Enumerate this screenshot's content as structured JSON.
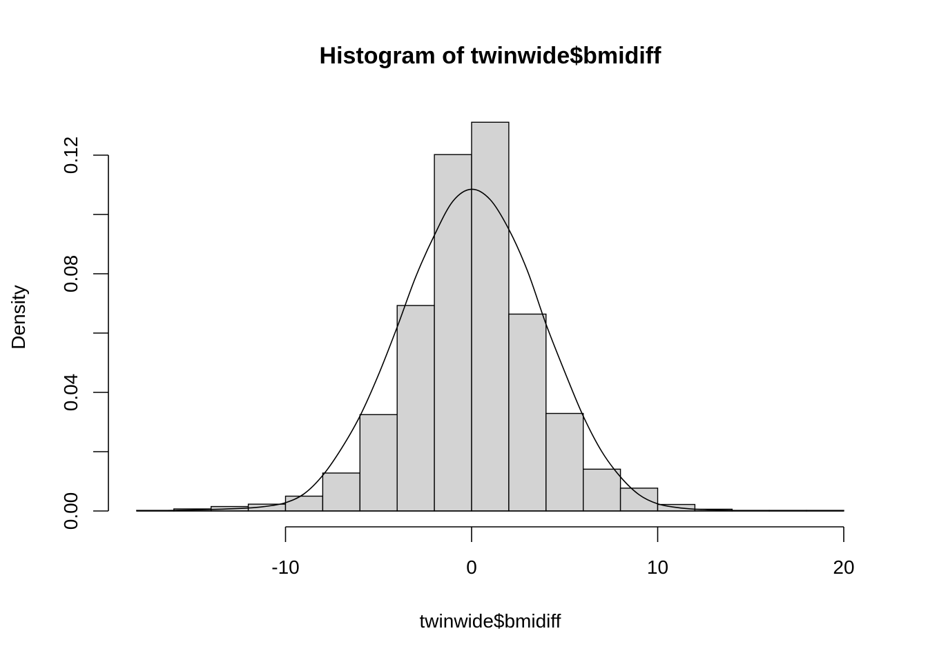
{
  "chart_data": {
    "type": "bar",
    "subtype": "histogram",
    "title": "Histogram of twinwide$bmidiff",
    "xlabel": "twinwide$bmidiff",
    "ylabel": "Density",
    "xlim": [
      -20,
      20
    ],
    "ylim": [
      0,
      0.12
    ],
    "x_ticks": [
      -10,
      0,
      10,
      20
    ],
    "x_tick_labels": [
      "-10",
      "0",
      "10",
      "20"
    ],
    "y_ticks": [
      0.0,
      0.02,
      0.04,
      0.06,
      0.08,
      0.1,
      0.12
    ],
    "y_tick_labels": [
      "0.00",
      "",
      "0.04",
      "",
      "0.08",
      "",
      "0.12"
    ],
    "bins": [
      {
        "x0": -18,
        "x1": -16,
        "density": 0.0002
      },
      {
        "x0": -16,
        "x1": -14,
        "density": 0.0007
      },
      {
        "x0": -14,
        "x1": -12,
        "density": 0.0015
      },
      {
        "x0": -12,
        "x1": -10,
        "density": 0.0023
      },
      {
        "x0": -10,
        "x1": -8,
        "density": 0.005
      },
      {
        "x0": -8,
        "x1": -6,
        "density": 0.0128
      },
      {
        "x0": -6,
        "x1": -4,
        "density": 0.0325
      },
      {
        "x0": -4,
        "x1": -2,
        "density": 0.0693
      },
      {
        "x0": -2,
        "x1": 0,
        "density": 0.1202
      },
      {
        "x0": 0,
        "x1": 2,
        "density": 0.1311
      },
      {
        "x0": 2,
        "x1": 4,
        "density": 0.0664
      },
      {
        "x0": 4,
        "x1": 6,
        "density": 0.0329
      },
      {
        "x0": 6,
        "x1": 8,
        "density": 0.0141
      },
      {
        "x0": 8,
        "x1": 10,
        "density": 0.0077
      },
      {
        "x0": 10,
        "x1": 12,
        "density": 0.0022
      },
      {
        "x0": 12,
        "x1": 14,
        "density": 0.0006
      },
      {
        "x0": 14,
        "x1": 16,
        "density": 0.0002
      },
      {
        "x0": 16,
        "x1": 18,
        "density": 0.0002
      },
      {
        "x0": 18,
        "x1": 20,
        "density": 0.0002
      }
    ],
    "density_curve": {
      "x": [
        -18,
        -16,
        -14,
        -12,
        -11,
        -10,
        -9,
        -8,
        -7,
        -6,
        -5,
        -4,
        -3,
        -2,
        -1,
        0,
        1,
        2,
        3,
        4,
        5,
        6,
        7,
        8,
        9,
        10,
        11,
        12,
        14,
        16,
        18,
        20
      ],
      "y": [
        0.0001,
        0.0002,
        0.0005,
        0.001,
        0.0016,
        0.0028,
        0.0058,
        0.012,
        0.021,
        0.032,
        0.046,
        0.062,
        0.079,
        0.093,
        0.1045,
        0.1085,
        0.105,
        0.095,
        0.081,
        0.063,
        0.047,
        0.032,
        0.02,
        0.0115,
        0.0055,
        0.0024,
        0.0012,
        0.0006,
        0.0002,
        0.0001,
        0.0001,
        0.0001
      ]
    },
    "bar_fill": "#d3d3d3",
    "bar_stroke": "#000000",
    "grid": false,
    "legend": "none"
  }
}
